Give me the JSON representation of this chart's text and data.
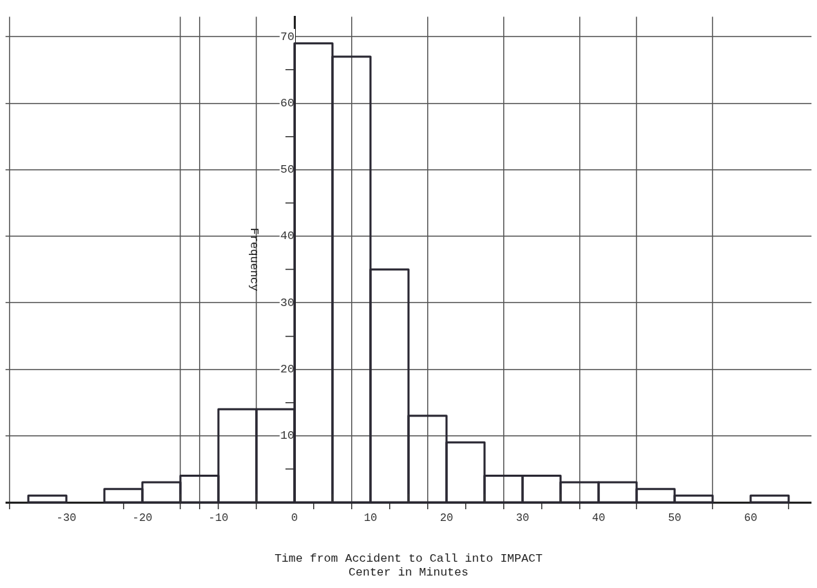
{
  "chart_data": {
    "type": "histogram",
    "xlabel": "Time from Accident to Call into IMPACT\nCenter in Minutes",
    "ylabel": "Frequency",
    "bins": [
      -35,
      -30,
      -25,
      -20,
      -15,
      -10,
      -5,
      0,
      5,
      10,
      15,
      20,
      25,
      30,
      35,
      40,
      45,
      50,
      55,
      60,
      65
    ],
    "values": [
      1,
      0,
      2,
      3,
      4,
      14,
      14,
      69,
      67,
      35,
      13,
      9,
      4,
      4,
      3,
      3,
      2,
      1,
      0,
      1
    ],
    "color": "#2a2833",
    "xlim": [
      -38,
      68
    ],
    "xticks": [
      -30,
      {
        "value": -15,
        "label": null
      },
      {
        "value": -5,
        "label": null
      },
      -20,
      -10,
      0,
      {
        "value": 5,
        "label": null
      },
      10,
      {
        "value": 15,
        "label": null
      },
      20,
      {
        "value": 25,
        "label": null
      },
      30,
      {
        "value": 35,
        "label": null
      },
      40,
      50,
      60
    ],
    "ylim": [
      0,
      73
    ],
    "yticks": [
      {
        "value": 5,
        "label": null
      },
      10,
      {
        "value": 15,
        "label": null
      },
      20,
      {
        "value": 25,
        "label": null
      },
      30,
      {
        "value": 35,
        "label": null
      },
      40,
      {
        "value": 45,
        "label": null
      },
      50,
      {
        "value": 55,
        "label": null
      },
      60,
      {
        "value": 65,
        "label": null
      },
      70
    ],
    "grid": true
  }
}
